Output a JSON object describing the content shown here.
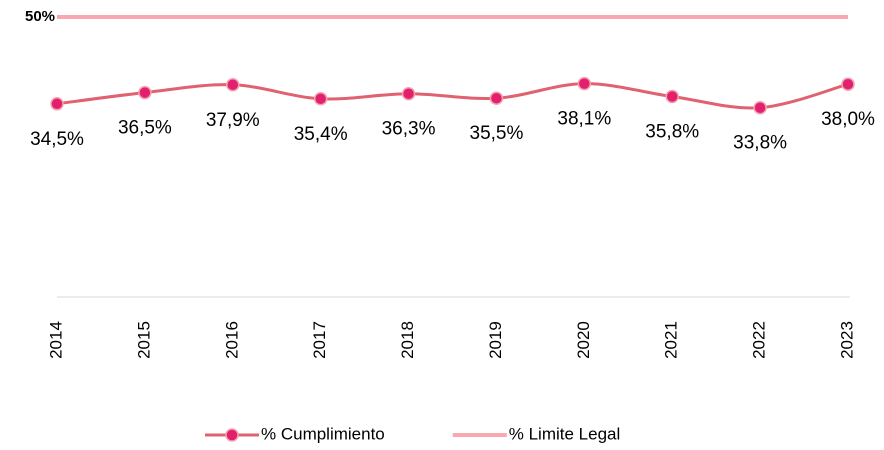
{
  "chart_data": {
    "type": "line",
    "categories": [
      "2014",
      "2015",
      "2016",
      "2017",
      "2018",
      "2019",
      "2020",
      "2021",
      "2022",
      "2023"
    ],
    "series": [
      {
        "name": "% Cumplimiento",
        "color": "#e0616f",
        "marker_color": "#e2206e",
        "smooth": true,
        "values": [
          34.5,
          36.5,
          37.9,
          35.4,
          36.3,
          35.5,
          38.1,
          35.8,
          33.8,
          38.0
        ],
        "value_labels": [
          "34,5%",
          "36,5%",
          "37,9%",
          "35,4%",
          "36,3%",
          "35,5%",
          "38,1%",
          "35,8%",
          "33,8%",
          "38,0%"
        ]
      },
      {
        "name": "% Limite Legal",
        "color": "#f9a8b2",
        "values": [
          50,
          50,
          50,
          50,
          50,
          50,
          50,
          50,
          50,
          50
        ],
        "value_labels": [
          "50%",
          null,
          null,
          null,
          null,
          null,
          null,
          null,
          null,
          null
        ]
      }
    ],
    "ylim": [
      0,
      50
    ],
    "legend": "bottom"
  }
}
